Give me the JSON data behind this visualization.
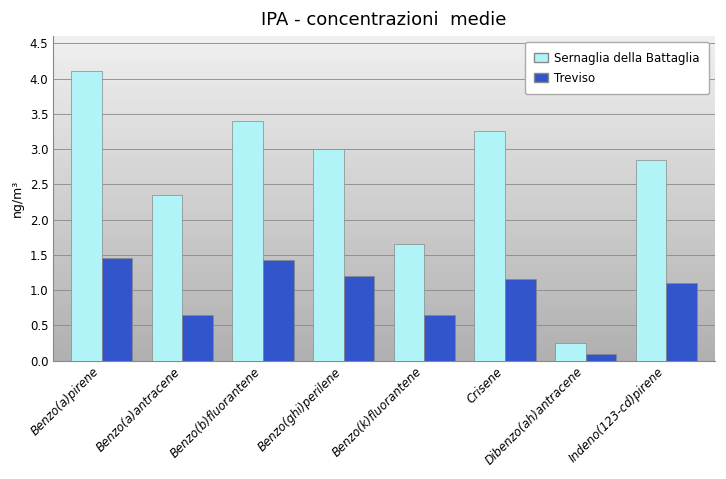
{
  "title": "IPA - concentrazioni  medie",
  "ylabel": "ng/m³",
  "categories": [
    "Benzo(a)pirene",
    "Benzo(a)antracene",
    "Benzo(b)fluorantene",
    "Benzo(ghi)perilene",
    "Benzo(k)fluorantene",
    "Crisene",
    "Dibenzo(ah)antracene",
    "Indeno(123-cd)pirene"
  ],
  "sernaglia_values": [
    4.1,
    2.35,
    3.4,
    3.0,
    1.65,
    3.25,
    0.25,
    2.85
  ],
  "treviso_values": [
    1.45,
    0.65,
    1.43,
    1.2,
    0.65,
    1.15,
    0.1,
    1.1
  ],
  "sernaglia_color": "#b0f4f8",
  "treviso_color": "#3355cc",
  "ylim": [
    0,
    4.6
  ],
  "yticks": [
    0.0,
    0.5,
    1.0,
    1.5,
    2.0,
    2.5,
    3.0,
    3.5,
    4.0,
    4.5
  ],
  "legend_labels": [
    "Sernaglia della Battaglia",
    "Treviso"
  ],
  "figure_background": "#ffffff",
  "gradient_top": "#f0f0f0",
  "gradient_bottom": "#b0b0b0",
  "title_fontsize": 13,
  "axis_label_fontsize": 9,
  "tick_fontsize": 8.5,
  "legend_fontsize": 8.5,
  "bar_width": 0.38
}
